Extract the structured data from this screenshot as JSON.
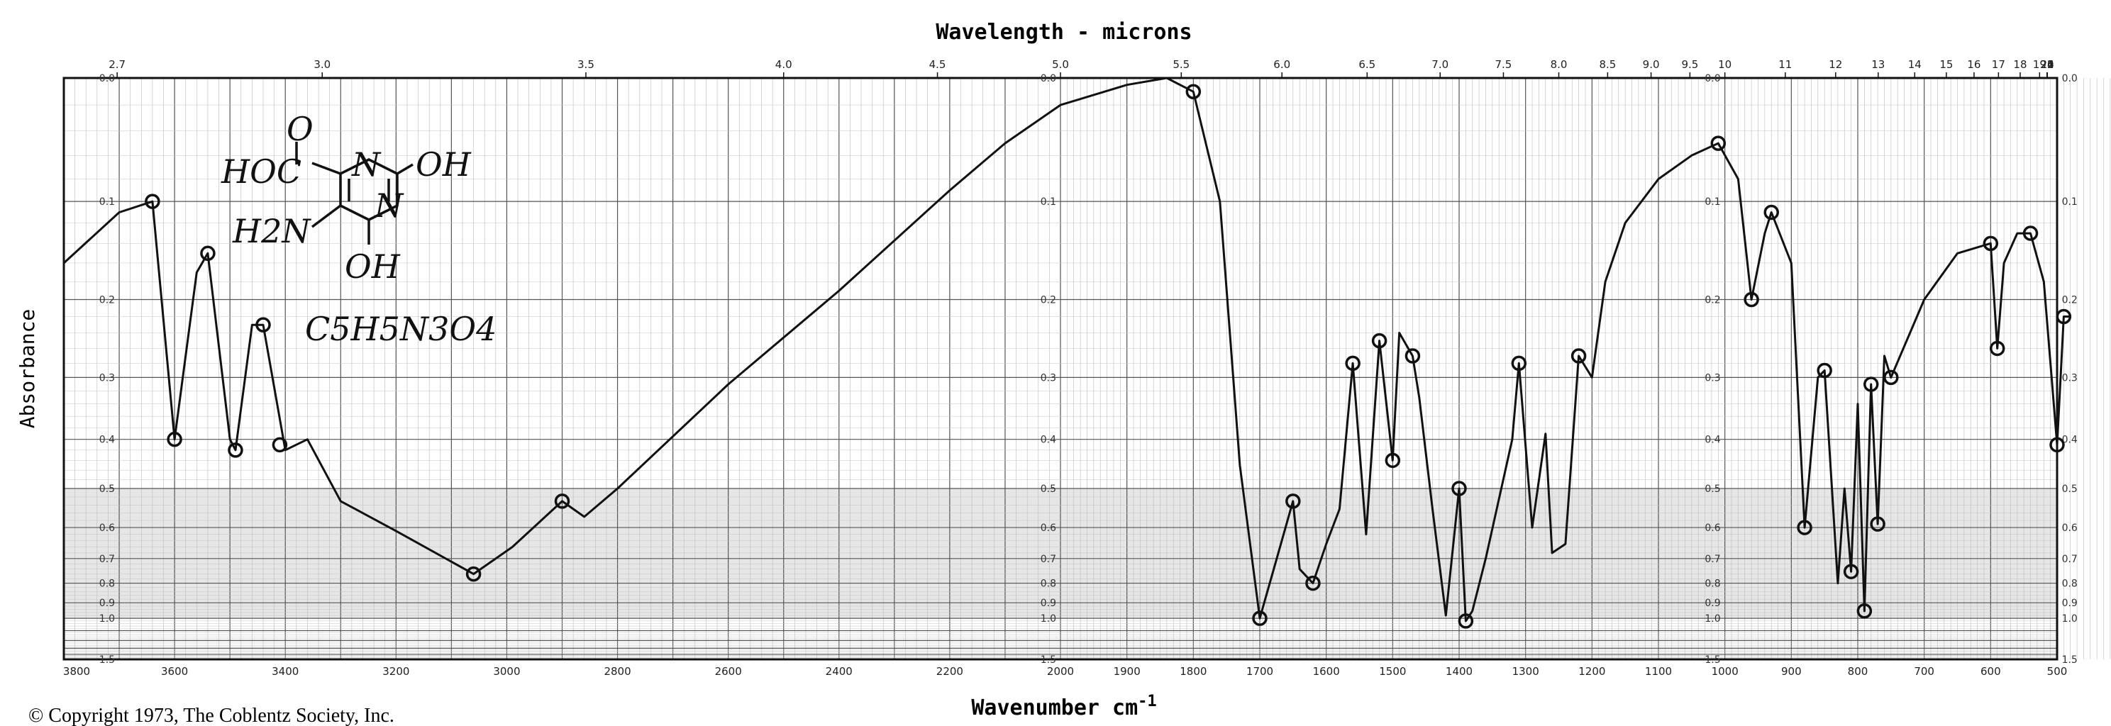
{
  "chart_data": {
    "type": "line",
    "top_title": "Wavelength - microns",
    "xlabel": "Wavenumber cm",
    "xlabel_superscript": "-1",
    "ylabel": "Absorbance",
    "copyright": "© Copyright 1973, The Coblentz Society, Inc.",
    "x_ticks": [
      "3800",
      "3600",
      "3400",
      "3200",
      "3000",
      "2800",
      "2600",
      "2400",
      "2200",
      "2000",
      "1900",
      "1800",
      "1700",
      "1600",
      "1500",
      "1400",
      "1300",
      "1200",
      "1100",
      "1000",
      "900",
      "800",
      "700",
      "600",
      "500"
    ],
    "wavelength_ticks": [
      "2.7",
      "3.0",
      "3.5",
      "4.0",
      "4.5",
      "5.0",
      "5.5",
      "6.0",
      "6.5",
      "7.0",
      "7.5",
      "8.0",
      "8.5",
      "9.0",
      "9.5",
      "10",
      "11",
      "12",
      "13",
      "14",
      "15",
      "16",
      "17",
      "18",
      "19",
      "20",
      "21",
      "22",
      "24",
      "26"
    ],
    "absorbance_ticks": [
      "0.0",
      "0.1",
      "0.2",
      "0.3",
      "0.4",
      "0.5",
      "0.6",
      "0.7",
      "0.8",
      "0.9",
      "1.0",
      "1.5"
    ],
    "annotations": {
      "formula": "C5H5N3O4",
      "structure_labels": [
        "HOC",
        "O",
        "N",
        "OH",
        "H2N",
        "N",
        "OH"
      ]
    },
    "grid": true,
    "series": [
      {
        "values": [
          [
            3800,
            0.16
          ],
          [
            3700,
            0.11
          ],
          [
            3640,
            0.1
          ],
          [
            3600,
            0.4
          ],
          [
            3560,
            0.17
          ],
          [
            3540,
            0.15
          ],
          [
            3500,
            0.4
          ],
          [
            3490,
            0.42
          ],
          [
            3460,
            0.23
          ],
          [
            3440,
            0.23
          ],
          [
            3400,
            0.42
          ],
          [
            3360,
            0.4
          ],
          [
            3300,
            0.53
          ],
          [
            3200,
            0.61
          ],
          [
            3060,
            0.76
          ],
          [
            2990,
            0.66
          ],
          [
            2900,
            0.53
          ],
          [
            2860,
            0.57
          ],
          [
            2800,
            0.5
          ],
          [
            2600,
            0.31
          ],
          [
            2400,
            0.19
          ],
          [
            2200,
            0.09
          ],
          [
            2100,
            0.05
          ],
          [
            2000,
            0.02
          ],
          [
            1900,
            0.005
          ],
          [
            1840,
            0.0
          ],
          [
            1800,
            0.01
          ],
          [
            1760,
            0.1
          ],
          [
            1730,
            0.45
          ],
          [
            1700,
            1.0
          ],
          [
            1680,
            0.75
          ],
          [
            1650,
            0.53
          ],
          [
            1640,
            0.74
          ],
          [
            1620,
            0.8
          ],
          [
            1600,
            0.65
          ],
          [
            1580,
            0.55
          ],
          [
            1560,
            0.28
          ],
          [
            1540,
            0.62
          ],
          [
            1520,
            0.25
          ],
          [
            1500,
            0.44
          ],
          [
            1490,
            0.24
          ],
          [
            1470,
            0.27
          ],
          [
            1460,
            0.33
          ],
          [
            1440,
            0.55
          ],
          [
            1420,
            0.98
          ],
          [
            1400,
            0.5
          ],
          [
            1390,
            1.02
          ],
          [
            1380,
            0.95
          ],
          [
            1360,
            0.7
          ],
          [
            1320,
            0.4
          ],
          [
            1310,
            0.28
          ],
          [
            1290,
            0.6
          ],
          [
            1270,
            0.39
          ],
          [
            1260,
            0.68
          ],
          [
            1240,
            0.65
          ],
          [
            1220,
            0.27
          ],
          [
            1200,
            0.3
          ],
          [
            1180,
            0.18
          ],
          [
            1150,
            0.12
          ],
          [
            1100,
            0.08
          ],
          [
            1050,
            0.06
          ],
          [
            1010,
            0.05
          ],
          [
            980,
            0.08
          ],
          [
            960,
            0.2
          ],
          [
            940,
            0.13
          ],
          [
            930,
            0.11
          ],
          [
            900,
            0.16
          ],
          [
            880,
            0.6
          ],
          [
            860,
            0.3
          ],
          [
            850,
            0.29
          ],
          [
            830,
            0.8
          ],
          [
            820,
            0.5
          ],
          [
            810,
            0.75
          ],
          [
            800,
            0.34
          ],
          [
            790,
            0.95
          ],
          [
            780,
            0.31
          ],
          [
            770,
            0.59
          ],
          [
            760,
            0.27
          ],
          [
            750,
            0.3
          ],
          [
            700,
            0.2
          ],
          [
            650,
            0.15
          ],
          [
            600,
            0.14
          ],
          [
            590,
            0.26
          ],
          [
            580,
            0.16
          ],
          [
            560,
            0.13
          ],
          [
            540,
            0.13
          ],
          [
            520,
            0.18
          ],
          [
            500,
            0.41
          ],
          [
            490,
            0.22
          ],
          [
            480,
            0.22
          ]
        ]
      }
    ],
    "markers": [
      [
        3640,
        0.1
      ],
      [
        3600,
        0.4
      ],
      [
        3540,
        0.15
      ],
      [
        3490,
        0.42
      ],
      [
        3440,
        0.23
      ],
      [
        3410,
        0.41
      ],
      [
        3060,
        0.76
      ],
      [
        2900,
        0.53
      ],
      [
        1800,
        0.01
      ],
      [
        1700,
        1.0
      ],
      [
        1650,
        0.53
      ],
      [
        1620,
        0.8
      ],
      [
        1560,
        0.28
      ],
      [
        1520,
        0.25
      ],
      [
        1500,
        0.44
      ],
      [
        1470,
        0.27
      ],
      [
        1400,
        0.5
      ],
      [
        1390,
        1.02
      ],
      [
        1310,
        0.28
      ],
      [
        1220,
        0.27
      ],
      [
        1010,
        0.05
      ],
      [
        960,
        0.2
      ],
      [
        930,
        0.11
      ],
      [
        880,
        0.6
      ],
      [
        850,
        0.29
      ],
      [
        810,
        0.75
      ],
      [
        790,
        0.95
      ],
      [
        780,
        0.31
      ],
      [
        770,
        0.59
      ],
      [
        750,
        0.3
      ],
      [
        600,
        0.14
      ],
      [
        590,
        0.26
      ],
      [
        540,
        0.13
      ],
      [
        500,
        0.41
      ],
      [
        490,
        0.22
      ]
    ]
  }
}
